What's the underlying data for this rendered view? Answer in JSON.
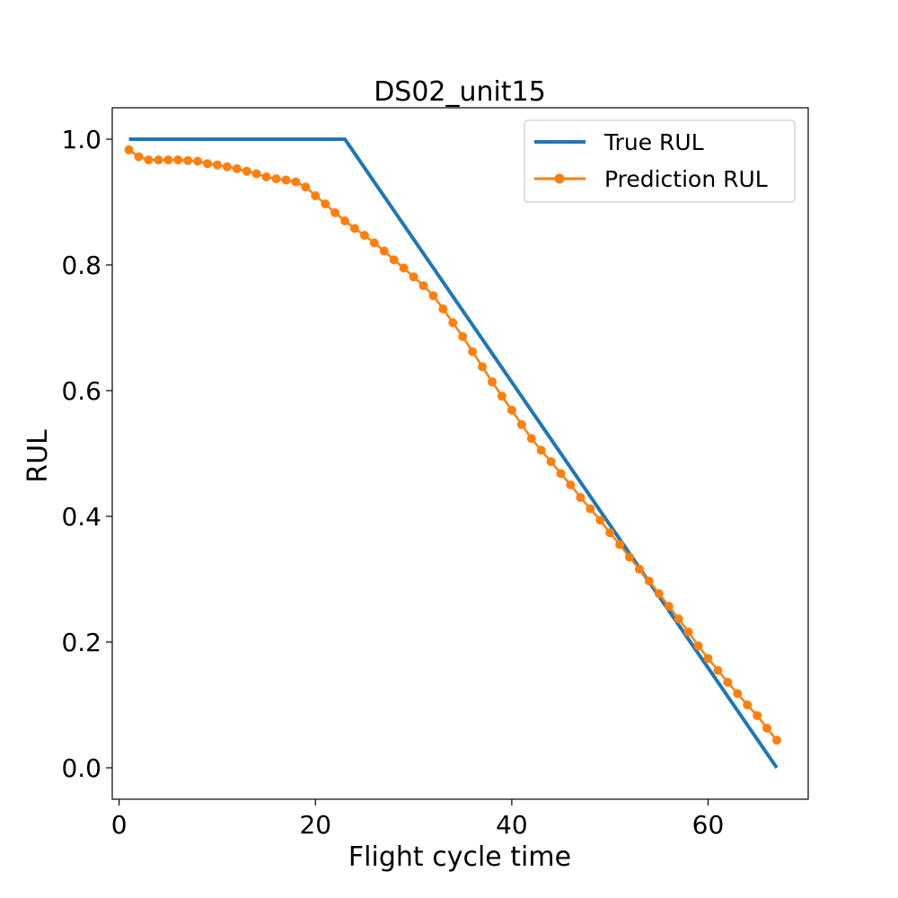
{
  "chart_data": {
    "type": "line",
    "title": "DS02_unit15",
    "xlabel": "Flight cycle time",
    "ylabel": "RUL",
    "xlim": [
      -0.7,
      70.2
    ],
    "ylim": [
      -0.05,
      1.05
    ],
    "xticks": [
      0,
      20,
      40,
      60
    ],
    "yticks": [
      0.0,
      0.2,
      0.4,
      0.6,
      0.8,
      1.0
    ],
    "xtick_labels": [
      "0",
      "20",
      "40",
      "60"
    ],
    "ytick_labels": [
      "0.0",
      "0.2",
      "0.4",
      "0.6",
      "0.8",
      "1.0"
    ],
    "grid": false,
    "legend_position": "top-right",
    "series": [
      {
        "name": "True RUL",
        "color": "#1f77b4",
        "marker": "none",
        "x": [
          1,
          23,
          67
        ],
        "y": [
          1.0,
          1.0,
          0.0
        ]
      },
      {
        "name": "Prediction RUL",
        "color": "#ff7f0e",
        "marker": "circle",
        "x": [
          1,
          2,
          3,
          4,
          5,
          6,
          7,
          8,
          9,
          10,
          11,
          12,
          13,
          14,
          15,
          16,
          17,
          18,
          19,
          20,
          21,
          22,
          23,
          24,
          25,
          26,
          27,
          28,
          29,
          30,
          31,
          32,
          33,
          34,
          35,
          36,
          37,
          38,
          39,
          40,
          41,
          42,
          43,
          44,
          45,
          46,
          47,
          48,
          49,
          50,
          51,
          52,
          53,
          54,
          55,
          56,
          57,
          58,
          59,
          60,
          61,
          62,
          63,
          64,
          65,
          66,
          67
        ],
        "y": [
          0.983,
          0.972,
          0.967,
          0.967,
          0.967,
          0.967,
          0.966,
          0.965,
          0.961,
          0.959,
          0.956,
          0.953,
          0.949,
          0.945,
          0.94,
          0.937,
          0.935,
          0.932,
          0.924,
          0.91,
          0.897,
          0.883,
          0.87,
          0.858,
          0.847,
          0.835,
          0.822,
          0.808,
          0.795,
          0.781,
          0.767,
          0.751,
          0.73,
          0.708,
          0.686,
          0.662,
          0.638,
          0.614,
          0.591,
          0.569,
          0.546,
          0.524,
          0.505,
          0.487,
          0.468,
          0.45,
          0.43,
          0.412,
          0.394,
          0.374,
          0.355,
          0.335,
          0.316,
          0.297,
          0.277,
          0.257,
          0.237,
          0.216,
          0.194,
          0.174,
          0.155,
          0.136,
          0.118,
          0.1,
          0.083,
          0.063,
          0.044
        ]
      }
    ]
  }
}
